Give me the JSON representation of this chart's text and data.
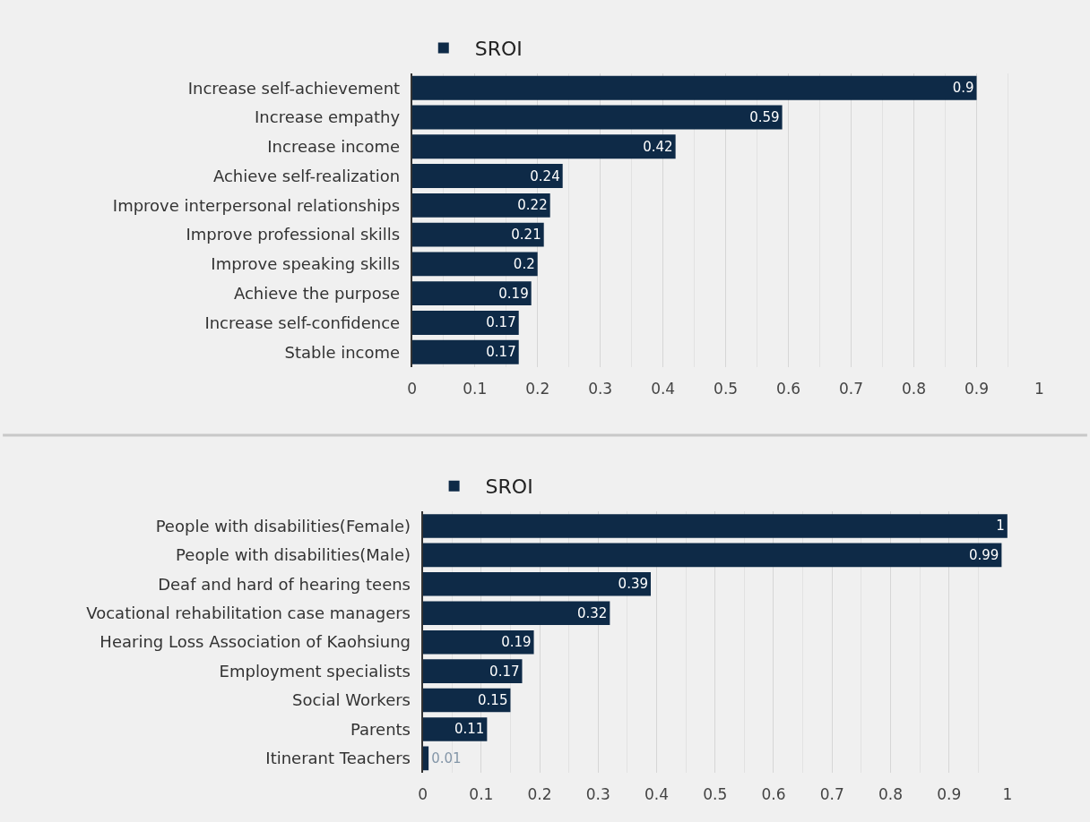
{
  "chart_data": [
    {
      "type": "bar",
      "orientation": "horizontal",
      "categories": [
        "Increase self-achievement",
        "Increase empathy",
        "Increase income",
        "Achieve self-realization",
        "Improve interpersonal relationships",
        "Improve professional skills",
        "Improve speaking skills",
        "Achieve the purpose",
        "Increase self-confidence",
        "Stable income"
      ],
      "series": [
        {
          "name": "SROI",
          "color": "#0e2a47",
          "values": [
            0.9,
            0.59,
            0.42,
            0.24,
            0.22,
            0.21,
            0.2,
            0.19,
            0.17,
            0.17
          ]
        }
      ],
      "xlim": [
        0,
        1
      ],
      "xticks": [
        0,
        0.1,
        0.2,
        0.3,
        0.4,
        0.5,
        0.6,
        0.7,
        0.8,
        0.9,
        1
      ],
      "grid": "x",
      "legend": "top",
      "data_labels": true
    },
    {
      "type": "bar",
      "orientation": "horizontal",
      "categories": [
        "People with disabilities(Female)",
        "People with disabilities(Male)",
        "Deaf and hard of hearing teens",
        "Vocational rehabilitation case managers",
        "Hearing Loss Association of Kaohsiung",
        "Employment specialists",
        "Social Workers",
        "Parents",
        "Itinerant Teachers"
      ],
      "series": [
        {
          "name": "SROI",
          "color": "#0e2a47",
          "values": [
            1,
            0.99,
            0.39,
            0.32,
            0.19,
            0.17,
            0.15,
            0.11,
            0.01
          ]
        }
      ],
      "xlim": [
        0,
        1
      ],
      "xticks": [
        0,
        0.1,
        0.2,
        0.3,
        0.4,
        0.5,
        0.6,
        0.7,
        0.8,
        0.9,
        1
      ],
      "grid": "x",
      "legend": "top",
      "data_labels": true
    }
  ]
}
